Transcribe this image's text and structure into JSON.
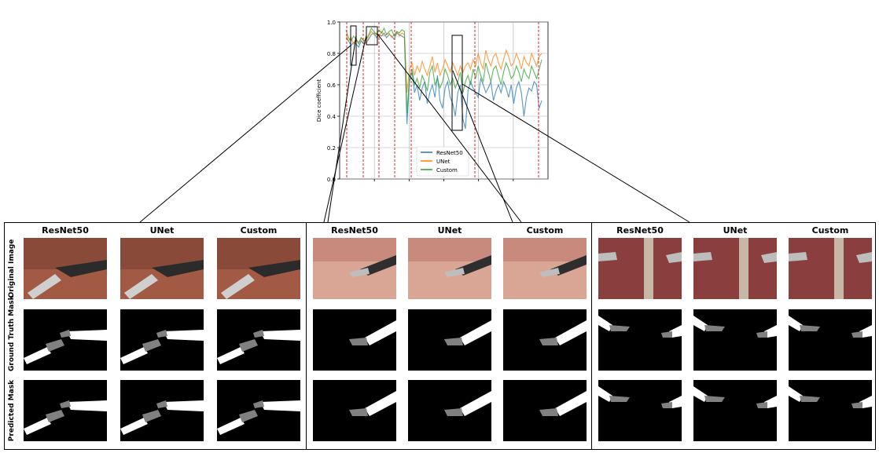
{
  "chart_data": {
    "type": "line",
    "ylabel": "Dice coefficient",
    "ylim": [
      0.0,
      1.0
    ],
    "yticks": [
      "0.0",
      "0.2",
      "0.4",
      "0.6",
      "0.8",
      "1.0"
    ],
    "grid": true,
    "legend_position": "lower-center",
    "series": [
      {
        "name": "ResNet50",
        "color": "#1f77b4",
        "values": [
          0.9,
          0.88,
          0.85,
          0.87,
          0.86,
          0.84,
          0.88,
          0.86,
          0.87,
          0.89,
          0.92,
          0.93,
          0.9,
          0.92,
          0.91,
          0.93,
          0.9,
          0.92,
          0.91,
          0.89,
          0.93,
          0.92,
          0.91,
          0.9,
          0.35,
          0.62,
          0.68,
          0.55,
          0.6,
          0.5,
          0.58,
          0.62,
          0.48,
          0.55,
          0.6,
          0.52,
          0.66,
          0.5,
          0.45,
          0.58,
          0.62,
          0.52,
          0.48,
          0.4,
          0.55,
          0.6,
          0.38,
          0.32,
          0.56,
          0.62,
          0.58,
          0.55,
          0.52,
          0.64,
          0.6,
          0.55,
          0.58,
          0.62,
          0.5,
          0.56,
          0.6,
          0.55,
          0.62,
          0.58,
          0.52,
          0.6,
          0.48,
          0.58,
          0.62,
          0.55,
          0.4,
          0.52,
          0.58,
          0.56,
          0.62,
          0.6,
          0.45,
          0.5
        ]
      },
      {
        "name": "UNet",
        "color": "#ff7f0e",
        "values": [
          0.92,
          0.88,
          0.9,
          0.86,
          0.89,
          0.87,
          0.9,
          0.88,
          0.86,
          0.91,
          0.94,
          0.92,
          0.93,
          0.9,
          0.94,
          0.91,
          0.92,
          0.93,
          0.9,
          0.92,
          0.94,
          0.91,
          0.93,
          0.92,
          0.55,
          0.7,
          0.74,
          0.66,
          0.72,
          0.68,
          0.75,
          0.7,
          0.66,
          0.72,
          0.78,
          0.68,
          0.74,
          0.66,
          0.7,
          0.76,
          0.72,
          0.68,
          0.74,
          0.7,
          0.66,
          0.72,
          0.68,
          0.72,
          0.74,
          0.7,
          0.76,
          0.72,
          0.8,
          0.74,
          0.7,
          0.82,
          0.76,
          0.72,
          0.78,
          0.8,
          0.74,
          0.7,
          0.76,
          0.82,
          0.78,
          0.72,
          0.74,
          0.8,
          0.76,
          0.7,
          0.78,
          0.74,
          0.72,
          0.8,
          0.76,
          0.72,
          0.78,
          0.8
        ]
      },
      {
        "name": "Custom",
        "color": "#2ca02c",
        "values": [
          0.95,
          0.9,
          0.88,
          0.91,
          0.89,
          0.86,
          0.9,
          0.88,
          0.89,
          0.92,
          0.96,
          0.94,
          0.92,
          0.95,
          0.93,
          0.96,
          0.92,
          0.94,
          0.95,
          0.91,
          0.94,
          0.93,
          0.95,
          0.94,
          0.42,
          0.65,
          0.7,
          0.6,
          0.64,
          0.58,
          0.66,
          0.62,
          0.56,
          0.68,
          0.72,
          0.6,
          0.64,
          0.58,
          0.62,
          0.7,
          0.66,
          0.6,
          0.64,
          0.58,
          0.62,
          0.68,
          0.55,
          0.62,
          0.66,
          0.6,
          0.7,
          0.64,
          0.72,
          0.66,
          0.62,
          0.74,
          0.68,
          0.62,
          0.7,
          0.72,
          0.66,
          0.6,
          0.68,
          0.74,
          0.7,
          0.64,
          0.66,
          0.72,
          0.68,
          0.62,
          0.7,
          0.66,
          0.64,
          0.72,
          0.68,
          0.64,
          0.7,
          0.76
        ]
      }
    ],
    "dataset_boundaries": [
      0.5,
      3.5,
      6.5,
      9.5,
      12.5,
      18.5,
      30.5
    ]
  },
  "grid_figure": {
    "column_headers": [
      "ResNet50",
      "UNet",
      "Custom"
    ],
    "row_headers": [
      "Original Image",
      "Ground Truth Mask",
      "Predicted Mask"
    ],
    "colors": {
      "background": "#ffffff",
      "mask_bg": "#000000",
      "tool_white": "#ffffff",
      "tool_gray": "#808080",
      "boundary_red": "#d62728",
      "grid": "#b0b0b0"
    }
  }
}
